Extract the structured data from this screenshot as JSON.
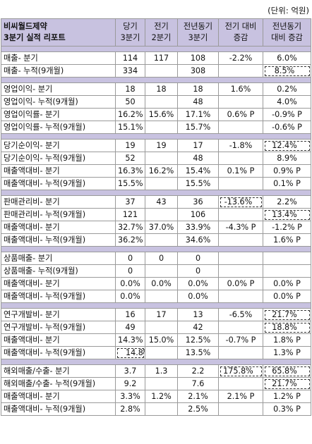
{
  "unit_label": "(단위: 억원)",
  "header": {
    "title_line1": "비씨월드제약",
    "title_line2": "3분기 실적 리포트",
    "cols": [
      [
        "당기",
        "3분기"
      ],
      [
        "전기",
        "2분기"
      ],
      [
        "전년동기",
        "3분기"
      ],
      [
        "전기 대비",
        "증감"
      ],
      [
        "전년동기",
        "대비 증감"
      ]
    ]
  },
  "sections": [
    {
      "rows": [
        {
          "label": "매출- 분기",
          "cur": "114",
          "prev": "117",
          "yoy": "108",
          "qoq": "-2.2%",
          "yoyc": "6.0%"
        },
        {
          "label": "매출- 누적(9개월)",
          "cur": "334",
          "prev": "",
          "yoy": "308",
          "qoq": "",
          "yoyc": "8.5%",
          "hl": true
        }
      ]
    },
    {
      "rows": [
        {
          "label": "영업이익- 분기",
          "cur": "18",
          "prev": "18",
          "yoy": "18",
          "qoq": "1.6%",
          "yoyc": "0.2%"
        },
        {
          "label": "영업이익- 누적(9개월)",
          "cur": "50",
          "prev": "",
          "yoy": "48",
          "qoq": "",
          "yoyc": "4.0%"
        },
        {
          "label": "영업이익률- 분기",
          "cur": "16.2%",
          "prev": "15.6%",
          "yoy": "17.1%",
          "qoq": "0.6% P",
          "yoyc": "-0.9% P"
        },
        {
          "label": "영업이익률- 누적(9개월)",
          "cur": "15.1%",
          "prev": "",
          "yoy": "15.7%",
          "qoq": "",
          "yoyc": "-0.6% P"
        }
      ]
    },
    {
      "rows": [
        {
          "label": "당기순이익- 분기",
          "cur": "19",
          "prev": "19",
          "yoy": "17",
          "qoq": "-1.8%",
          "yoyc": "12.4%",
          "hl": true
        },
        {
          "label": "당기순이익- 누적(9개월)",
          "cur": "52",
          "prev": "",
          "yoy": "48",
          "qoq": "",
          "yoyc": "8.9%"
        },
        {
          "label": "매출액대비- 분기",
          "cur": "16.3%",
          "prev": "16.2%",
          "yoy": "15.4%",
          "qoq": "0.1% P",
          "yoyc": "0.9% P"
        },
        {
          "label": "매출액대비- 누적(9개월)",
          "cur": "15.5%",
          "prev": "",
          "yoy": "15.5%",
          "qoq": "",
          "yoyc": "0.1% P"
        }
      ]
    },
    {
      "rows": [
        {
          "label": "판매관리비- 분기",
          "cur": "37",
          "prev": "43",
          "yoy": "36",
          "qoq": "-13.6%",
          "yoyc": "2.2%",
          "hlq": true
        },
        {
          "label": "판매관리비- 누적(9개월)",
          "cur": "121",
          "prev": "",
          "yoy": "106",
          "qoq": "",
          "yoyc": "13.4%",
          "hl": true
        },
        {
          "label": "매출액대비- 분기",
          "cur": "32.7%",
          "prev": "37.0%",
          "yoy": "33.9%",
          "qoq": "-4.3% P",
          "yoyc": "-1.2% P"
        },
        {
          "label": "매출액대비- 누적(9개월)",
          "cur": "36.2%",
          "prev": "",
          "yoy": "34.6%",
          "qoq": "",
          "yoyc": "1.6% P"
        }
      ]
    },
    {
      "rows": [
        {
          "label": "상품매출- 분기",
          "cur": "0",
          "prev": "0",
          "yoy": "0",
          "qoq": "",
          "yoyc": ""
        },
        {
          "label": "상품매출- 누적(9개월)",
          "cur": "0",
          "prev": "",
          "yoy": "0",
          "qoq": "",
          "yoyc": ""
        },
        {
          "label": "매출액대비- 분기",
          "cur": "0.0%",
          "prev": "0.0%",
          "yoy": "0.0%",
          "qoq": "0.0% P",
          "yoyc": "0.0% P"
        },
        {
          "label": "매출액대비- 누적(9개월)",
          "cur": "0.0%",
          "prev": "",
          "yoy": "0.0%",
          "qoq": "",
          "yoyc": "0.0% P"
        }
      ]
    },
    {
      "rows": [
        {
          "label": "연구개발비- 분기",
          "cur": "16",
          "prev": "17",
          "yoy": "13",
          "qoq": "-6.5%",
          "yoyc": "21.7%",
          "hl": true
        },
        {
          "label": "연구개발비- 누적(9개월)",
          "cur": "49",
          "prev": "",
          "yoy": "42",
          "qoq": "",
          "yoyc": "18.8%",
          "hl": true
        },
        {
          "label": "매출액대비- 분기",
          "cur": "14.3%",
          "prev": "15.0%",
          "yoy": "12.5%",
          "qoq": "-0.7% P",
          "yoyc": "1.8% P"
        },
        {
          "label": "매출액대비- 누적(9개월)",
          "cur": "14.8%",
          "prev": "",
          "yoy": "13.5%",
          "qoq": "",
          "yoyc": "1.3% P",
          "hlc": true
        }
      ]
    },
    {
      "rows": [
        {
          "label": "해외매출/수출- 분기",
          "cur": "3.7",
          "prev": "1.3",
          "yoy": "2.2",
          "qoq": "175.8%",
          "yoyc": "65.8%",
          "hl": true,
          "hlq": true
        },
        {
          "label": "해외매출/수출- 누적(9개월)",
          "cur": "9.2",
          "prev": "",
          "yoy": "7.6",
          "qoq": "",
          "yoyc": "21.7%",
          "hl": true
        },
        {
          "label": "매출액대비- 분기",
          "cur": "3.3%",
          "prev": "1.2%",
          "yoy": "2.1%",
          "qoq": "2.1% P",
          "yoyc": "1.2% P"
        },
        {
          "label": "매출액대비- 누적(9개월)",
          "cur": "2.8%",
          "prev": "",
          "yoy": "2.5%",
          "qoq": "",
          "yoyc": "0.3% P"
        }
      ]
    }
  ]
}
